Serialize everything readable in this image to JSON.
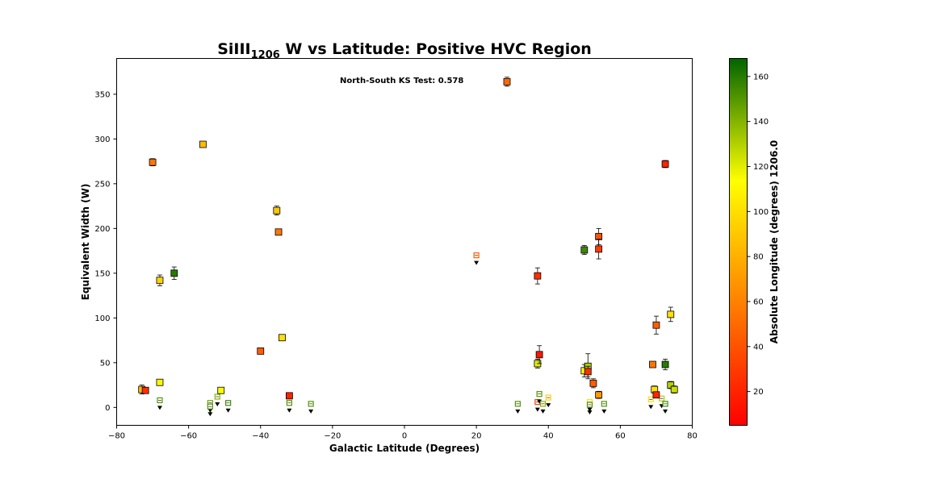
{
  "chart_data": {
    "type": "scatter",
    "title": {
      "prefix": "SiIII",
      "sub": "1206",
      "suffix": " W vs Latitude: Positive HVC Region"
    },
    "xlabel": "Galactic Latitude (Degrees)",
    "ylabel": "Equivalent Width (W)",
    "xlim": [
      -80,
      80
    ],
    "ylim": [
      -20,
      390
    ],
    "xticks": [
      -80,
      -60,
      -40,
      -20,
      0,
      20,
      40,
      60,
      80
    ],
    "yticks": [
      0,
      50,
      100,
      150,
      200,
      250,
      300,
      350
    ],
    "annotation": "North-South KS Test: 0.578",
    "colorbar": {
      "label": "Absolute Longitude (degrees) 1206.0",
      "range": [
        5,
        168
      ],
      "ticks": [
        20,
        40,
        60,
        80,
        100,
        120,
        140,
        160
      ],
      "colors": [
        "#ff0000",
        "#ff8000",
        "#ffff00",
        "#006400"
      ]
    },
    "detections": [
      {
        "x": -73,
        "y": 20,
        "c": 85,
        "err": 5
      },
      {
        "x": -72,
        "y": 19,
        "c": 25,
        "err": 3
      },
      {
        "x": -70,
        "y": 274,
        "c": 55,
        "err": 4
      },
      {
        "x": -68,
        "y": 142,
        "c": 95,
        "err": 6
      },
      {
        "x": -68,
        "y": 28,
        "c": 110,
        "err": 3
      },
      {
        "x": -64,
        "y": 150,
        "c": 160,
        "err": 7
      },
      {
        "x": -56,
        "y": 294,
        "c": 85,
        "err": 3
      },
      {
        "x": -51,
        "y": 19,
        "c": 115,
        "err": 3
      },
      {
        "x": -40,
        "y": 63,
        "c": 45,
        "err": 3
      },
      {
        "x": -35.5,
        "y": 220,
        "c": 90,
        "err": 5
      },
      {
        "x": -35,
        "y": 196,
        "c": 55,
        "err": 3
      },
      {
        "x": -34,
        "y": 78,
        "c": 100,
        "err": 3
      },
      {
        "x": -32,
        "y": 13,
        "c": 20,
        "err": 3
      },
      {
        "x": 28.5,
        "y": 364,
        "c": 50,
        "err": 5
      },
      {
        "x": 37,
        "y": 147,
        "c": 25,
        "err": 9
      },
      {
        "x": 37,
        "y": 49,
        "c": 120,
        "err": 5
      },
      {
        "x": 37.5,
        "y": 59,
        "c": 15,
        "err": 10
      },
      {
        "x": 50,
        "y": 176,
        "c": 155,
        "err": 5
      },
      {
        "x": 50,
        "y": 41,
        "c": 110,
        "err": 7
      },
      {
        "x": 51,
        "y": 46,
        "c": 130,
        "err": 14
      },
      {
        "x": 51,
        "y": 40,
        "c": 25,
        "err": 6
      },
      {
        "x": 52.5,
        "y": 27,
        "c": 45,
        "err": 5
      },
      {
        "x": 54,
        "y": 191,
        "c": 40,
        "err": 9
      },
      {
        "x": 54,
        "y": 177,
        "c": 30,
        "err": 11
      },
      {
        "x": 54,
        "y": 14,
        "c": 70,
        "err": 4
      },
      {
        "x": 69,
        "y": 48,
        "c": 55,
        "err": 3
      },
      {
        "x": 69.5,
        "y": 20,
        "c": 100,
        "err": 4
      },
      {
        "x": 70,
        "y": 92,
        "c": 45,
        "err": 10
      },
      {
        "x": 70,
        "y": 14,
        "c": 20,
        "err": 3
      },
      {
        "x": 72.5,
        "y": 272,
        "c": 20,
        "err": 4
      },
      {
        "x": 72.5,
        "y": 48,
        "c": 160,
        "err": 6
      },
      {
        "x": 74,
        "y": 104,
        "c": 100,
        "err": 8
      },
      {
        "x": 74,
        "y": 25,
        "c": 130,
        "err": 4
      },
      {
        "x": 75,
        "y": 20,
        "c": 125,
        "err": 4
      }
    ],
    "upper_limits": [
      {
        "x": -68,
        "y": 8,
        "c": 150
      },
      {
        "x": -54,
        "y": 5,
        "c": 145
      },
      {
        "x": -54,
        "y": 1,
        "c": 150
      },
      {
        "x": -52,
        "y": 12,
        "c": 140
      },
      {
        "x": -49,
        "y": 5,
        "c": 155
      },
      {
        "x": -32,
        "y": 5,
        "c": 150
      },
      {
        "x": -26,
        "y": 4,
        "c": 150
      },
      {
        "x": 20,
        "y": 170,
        "c": 45
      },
      {
        "x": 31.5,
        "y": 4,
        "c": 150
      },
      {
        "x": 37,
        "y": 6,
        "c": 30
      },
      {
        "x": 37.5,
        "y": 15,
        "c": 150
      },
      {
        "x": 38.5,
        "y": 4,
        "c": 140
      },
      {
        "x": 40,
        "y": 11,
        "c": 95
      },
      {
        "x": 51.5,
        "y": 6,
        "c": 100
      },
      {
        "x": 51.5,
        "y": 3,
        "c": 150
      },
      {
        "x": 55.5,
        "y": 4,
        "c": 150
      },
      {
        "x": 68.5,
        "y": 9,
        "c": 100
      },
      {
        "x": 71.5,
        "y": 10,
        "c": 130
      },
      {
        "x": 72.5,
        "y": 4,
        "c": 155
      }
    ]
  }
}
